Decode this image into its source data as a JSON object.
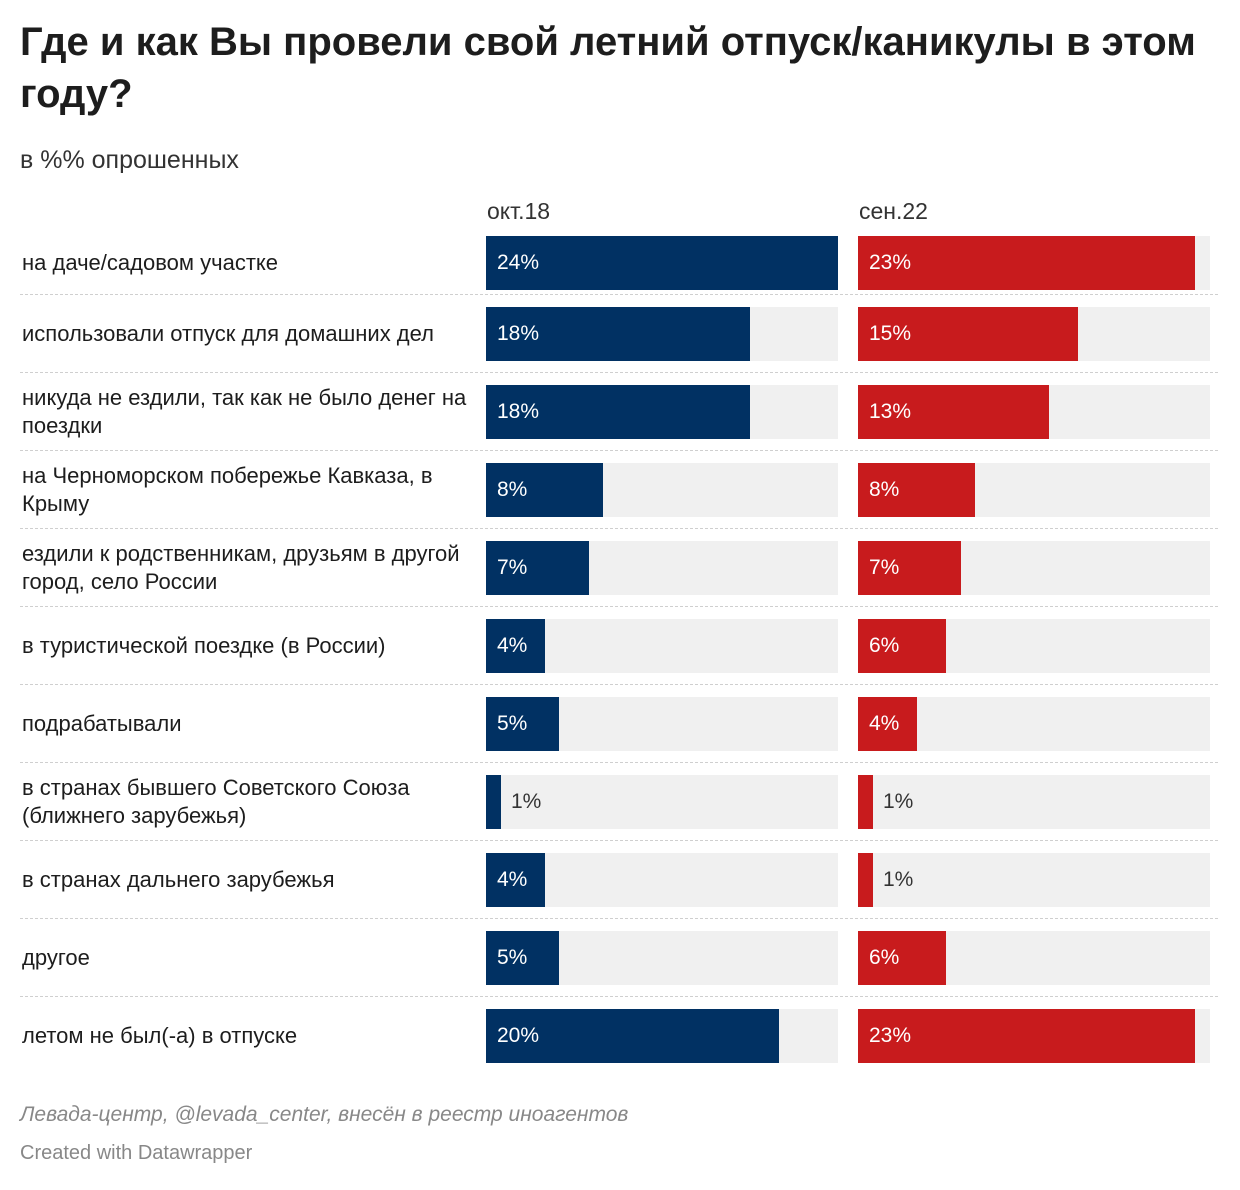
{
  "chart_data": {
    "type": "bar",
    "orientation": "horizontal",
    "title": "Где и как Вы провели свой летний отпуск/каникулы в этом году?",
    "subtitle": "в %% опрошенных",
    "categories": [
      "на даче/садовом участке",
      "использовали отпуск для домашних дел",
      "никуда не ездили, так как не было денег на поездки",
      "на Черноморском побережье Кавказа, в Крыму",
      "ездили к родственникам, друзьям в другой город, село России",
      "в туристической поездке (в России)",
      "подрабатывали",
      "в странах бывшего Советского Союза (ближнего зарубежья)",
      "в странах дальнего зарубежья",
      "другое",
      "летом не был(-а) в отпуске"
    ],
    "series": [
      {
        "name": "окт.18",
        "color": "#013163",
        "values": [
          24,
          18,
          18,
          8,
          7,
          4,
          5,
          1,
          4,
          5,
          20
        ],
        "labels": [
          "24%",
          "18%",
          "18%",
          "8%",
          "7%",
          "4%",
          "5%",
          "1%",
          "4%",
          "5%",
          "20%"
        ]
      },
      {
        "name": "сен.22",
        "color": "#c81b1d",
        "values": [
          23,
          15,
          13,
          8,
          7,
          6,
          4,
          1,
          1,
          6,
          23
        ],
        "labels": [
          "23%",
          "15%",
          "13%",
          "8%",
          "7%",
          "6%",
          "4%",
          "1%",
          "1%",
          "6%",
          "23%"
        ]
      }
    ],
    "xlim": [
      0,
      24
    ],
    "grid": false,
    "legend": "column headers"
  },
  "footer": {
    "source": "Левада-центр, @levada_center, внесён в реестр иноагентов",
    "credit": "Created with Datawrapper"
  }
}
